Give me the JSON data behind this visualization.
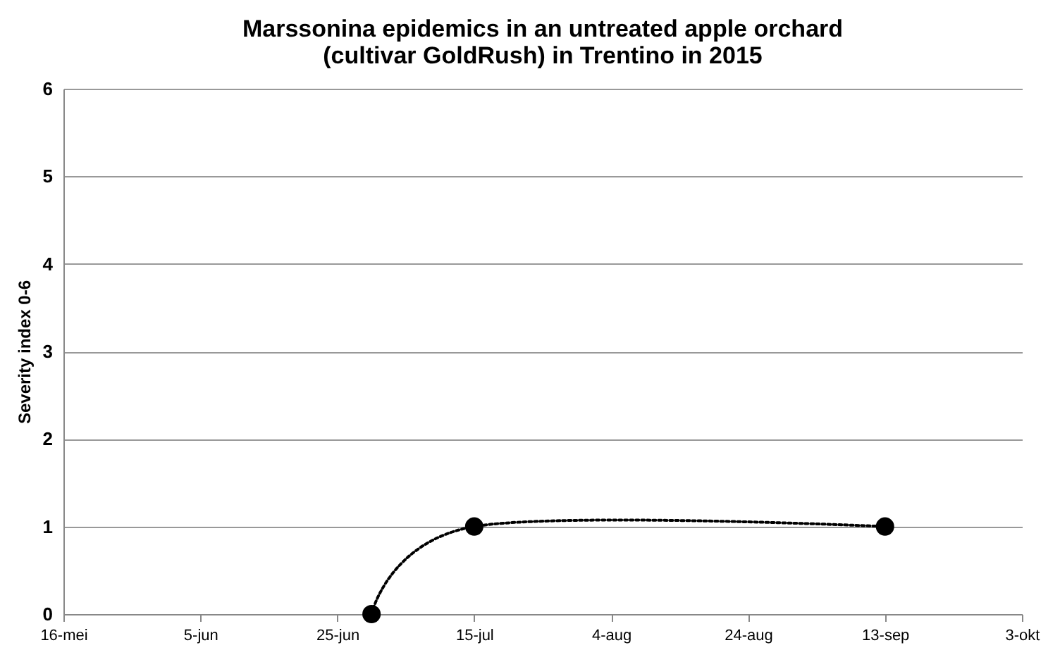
{
  "chart_data": {
    "type": "line",
    "title": "Marssonina epidemics in an untreated apple orchard (cultivar GoldRush)  in Trentino in 2015",
    "ylabel": "Severity index 0-6",
    "x": [
      "2015-06-30",
      "2015-07-15",
      "2015-09-13"
    ],
    "series": [
      {
        "color": "#000000",
        "values": [
          0,
          1,
          1
        ]
      }
    ],
    "xlim": [
      "2015-05-16",
      "2015-10-03"
    ],
    "xticks": [
      {
        "value": "2015-05-16",
        "label": "16-mei"
      },
      {
        "value": "2015-06-05",
        "label": "5-jun"
      },
      {
        "value": "2015-06-25",
        "label": "25-jun"
      },
      {
        "value": "2015-07-15",
        "label": "15-jul"
      },
      {
        "value": "2015-08-04",
        "label": "4-aug"
      },
      {
        "value": "2015-08-24",
        "label": "24-aug"
      },
      {
        "value": "2015-09-13",
        "label": "13-sep"
      },
      {
        "value": "2015-10-03",
        "label": "3-okt"
      }
    ],
    "ylim": [
      0,
      6
    ],
    "yticks": [
      0,
      1,
      2,
      3,
      4,
      5,
      6
    ],
    "grid": "y",
    "marker": "circle",
    "line_style": "dotted"
  }
}
